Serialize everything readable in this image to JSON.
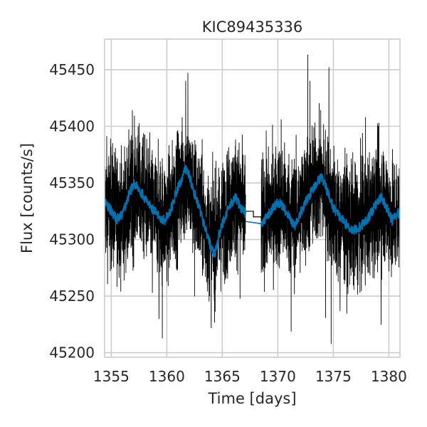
{
  "chart_data": {
    "type": "line",
    "title": "KIC89435336",
    "xlabel": "Time [days]",
    "ylabel": "Flux [counts/s]",
    "xlim": [
      1354.4,
      1381.0
    ],
    "ylim": [
      45196,
      45477
    ],
    "xticks": [
      1355,
      1360,
      1365,
      1370,
      1375,
      1380
    ],
    "yticks": [
      45200,
      45250,
      45300,
      45350,
      45400,
      45450
    ],
    "grid": true,
    "data_gap": [
      1367.1,
      1368.5
    ],
    "series": [
      {
        "style": "raw",
        "color": "#000000",
        "mean_curve": [
          [
            1354.4,
            45332
          ],
          [
            1356.0,
            45322
          ],
          [
            1357.3,
            45345
          ],
          [
            1358.8,
            45325
          ],
          [
            1360.0,
            45318
          ],
          [
            1361.7,
            45356
          ],
          [
            1363.0,
            45325
          ],
          [
            1364.0,
            45298
          ],
          [
            1365.2,
            45318
          ],
          [
            1366.2,
            45338
          ],
          [
            1367.1,
            45322
          ],
          [
            1368.5,
            45318
          ],
          [
            1370.2,
            45332
          ],
          [
            1371.5,
            45318
          ],
          [
            1372.7,
            45338
          ],
          [
            1373.9,
            45353
          ],
          [
            1375.2,
            45320
          ],
          [
            1377.0,
            45310
          ],
          [
            1378.2,
            45320
          ],
          [
            1379.3,
            45336
          ],
          [
            1380.3,
            45318
          ],
          [
            1381.0,
            45322
          ]
        ],
        "gap_step": [
          [
            1367.1,
            45325
          ],
          [
            1368.5,
            45320
          ]
        ],
        "scatter_amplitude": 48,
        "spikes": [
          [
            1355.9,
            45383
          ],
          [
            1356.9,
            45414
          ],
          [
            1358.7,
            45253
          ],
          [
            1359.3,
            45230
          ],
          [
            1359.6,
            45213
          ],
          [
            1361.7,
            45440
          ],
          [
            1361.9,
            45447
          ],
          [
            1362.5,
            45250
          ],
          [
            1364.0,
            45222
          ],
          [
            1364.3,
            45227
          ],
          [
            1366.6,
            45248
          ],
          [
            1370.3,
            45406
          ],
          [
            1371.2,
            45219
          ],
          [
            1372.7,
            45463
          ],
          [
            1372.9,
            45440
          ],
          [
            1374.3,
            45231
          ],
          [
            1374.6,
            45452
          ],
          [
            1374.8,
            45208
          ],
          [
            1375.6,
            45237
          ],
          [
            1377.9,
            45408
          ],
          [
            1379.3,
            45225
          ]
        ]
      },
      {
        "style": "binned",
        "color": "#0072b2",
        "points": [
          [
            1354.4,
            45333
          ],
          [
            1355.0,
            45325
          ],
          [
            1355.5,
            45318
          ],
          [
            1356.0,
            45322
          ],
          [
            1356.6,
            45340
          ],
          [
            1357.0,
            45349
          ],
          [
            1357.3,
            45348
          ],
          [
            1357.8,
            45340
          ],
          [
            1358.3,
            45332
          ],
          [
            1358.8,
            45326
          ],
          [
            1359.3,
            45320
          ],
          [
            1359.8,
            45317
          ],
          [
            1360.3,
            45325
          ],
          [
            1360.8,
            45340
          ],
          [
            1361.3,
            45353
          ],
          [
            1361.7,
            45362
          ],
          [
            1362.0,
            45358
          ],
          [
            1362.5,
            45340
          ],
          [
            1363.0,
            45325
          ],
          [
            1363.5,
            45309
          ],
          [
            1364.0,
            45292
          ],
          [
            1364.3,
            45287
          ],
          [
            1364.7,
            45303
          ],
          [
            1365.2,
            45320
          ],
          [
            1365.7,
            45330
          ],
          [
            1366.2,
            45337
          ],
          [
            1366.7,
            45328
          ],
          [
            1367.1,
            45323
          ],
          [
            1368.5,
            45312
          ],
          [
            1368.9,
            45318
          ],
          [
            1369.5,
            45327
          ],
          [
            1370.0,
            45333
          ],
          [
            1370.4,
            45330
          ],
          [
            1370.9,
            45322
          ],
          [
            1371.5,
            45312
          ],
          [
            1372.0,
            45322
          ],
          [
            1372.7,
            45337
          ],
          [
            1373.3,
            45347
          ],
          [
            1373.9,
            45356
          ],
          [
            1374.4,
            45344
          ],
          [
            1375.0,
            45328
          ],
          [
            1375.6,
            45320
          ],
          [
            1376.2,
            45313
          ],
          [
            1376.8,
            45308
          ],
          [
            1377.4,
            45311
          ],
          [
            1378.0,
            45317
          ],
          [
            1378.6,
            45327
          ],
          [
            1379.3,
            45338
          ],
          [
            1379.8,
            45328
          ],
          [
            1380.3,
            45317
          ],
          [
            1381.0,
            45325
          ]
        ],
        "gap_line": [
          [
            1367.1,
            45316
          ],
          [
            1368.5,
            45314
          ]
        ]
      }
    ]
  }
}
